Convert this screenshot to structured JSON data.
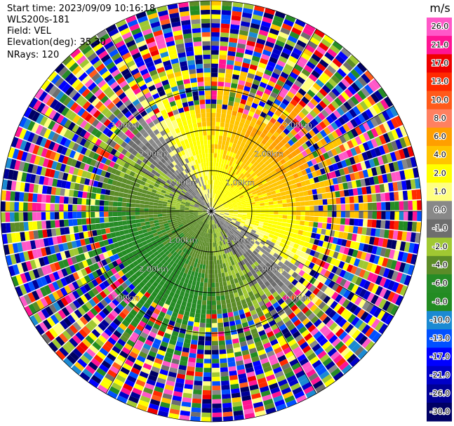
{
  "header": {
    "start_time": "Start time: 2023/09/09 10:16:18",
    "instrument": "WLS200s-181",
    "field": "Field: VEL",
    "elevation": "Elevation(deg): 35.30",
    "nrays": "NRays: 120"
  },
  "chart_data": {
    "type": "heatmap",
    "subtype": "polar-ppi-scan",
    "field": "VEL",
    "units": "m/s",
    "nrays": 120,
    "elevation_deg": 35.3,
    "range_rings_km": [
      1.0,
      2.0,
      3.0
    ],
    "ring_labels": [
      "1.00km",
      "2.00km",
      "3.00km"
    ],
    "colorbar": {
      "title": "m/s",
      "ticks": [
        "26.0",
        "21.0",
        "17.0",
        "13.0",
        "10.0",
        "8.0",
        "6.0",
        "4.0",
        "2.0",
        "1.0",
        "0.0",
        "-1.0",
        "-2.0",
        "-4.0",
        "-6.0",
        "-8.0",
        "-10.0",
        "-13.0",
        "-17.0",
        "-21.0",
        "-26.0",
        "-30.0"
      ],
      "colors": [
        "#ff58c8",
        "#ff1493",
        "#ee0000",
        "#ff2a00",
        "#ff5a1a",
        "#ff8060",
        "#ff9f00",
        "#ffc400",
        "#ffff00",
        "#ffff80",
        "#888888",
        "#6e6e6e",
        "#a0c832",
        "#5c8c28",
        "#268c26",
        "#228b22",
        "#1b8ad2",
        "#0050ff",
        "#0000ff",
        "#0000c8",
        "#000096",
        "#000064"
      ]
    },
    "pattern_notes": "Positive velocities (yellow/orange/red) toward upper-right, negative (green/blue) toward lower-left, noisy speckle beyond ~2.5 km"
  }
}
